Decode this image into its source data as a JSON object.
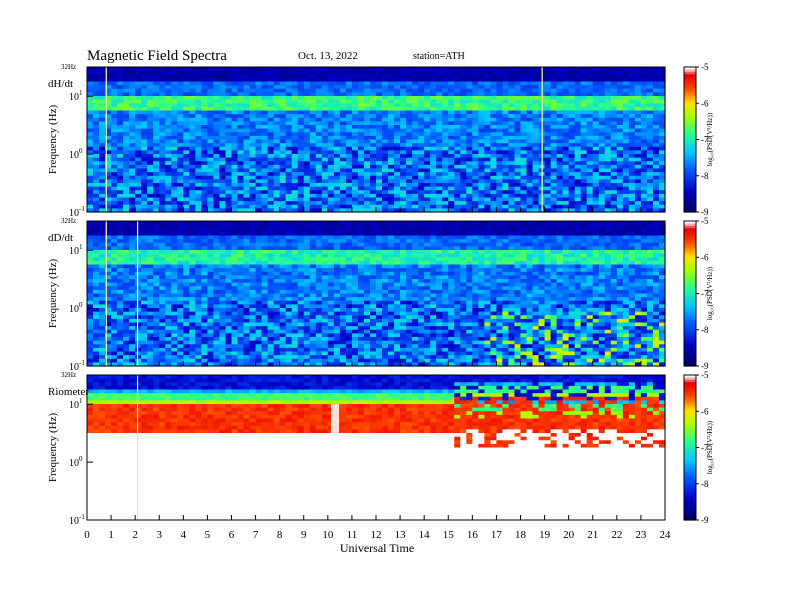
{
  "header": {
    "title": "Magnetic  Field  Spectra",
    "date": "Oct. 13, 2022",
    "station": "station=ATH"
  },
  "chart_data": [
    {
      "type": "heatmap",
      "panel_label": "dH/dt",
      "ylabel": "Frequency  (Hz)",
      "top_label": "32Hz",
      "y_ticks": [
        {
          "power": "1",
          "value": 10
        },
        {
          "power": "0",
          "value": 1
        },
        {
          "power": "-1",
          "value": 0.1
        }
      ],
      "ylim": [
        0.1,
        32
      ],
      "xlim": [
        0,
        24
      ],
      "scale": "log",
      "colorbar": {
        "label": "log₁₀(PSD(V²/Hz))",
        "ticks": [
          "-5",
          "-6",
          "-7",
          "-8",
          "-9"
        ],
        "range": [
          -9,
          -5
        ]
      },
      "features": {
        "band_low": -7.6,
        "band_high": -6.5,
        "spike_hours": [
          0.8,
          18.9
        ],
        "gap_hours": []
      }
    },
    {
      "type": "heatmap",
      "panel_label": "dD/dt",
      "ylabel": "Frequency  (Hz)",
      "top_label": "32Hz",
      "y_ticks": [
        {
          "power": "1",
          "value": 10
        },
        {
          "power": "0",
          "value": 1
        },
        {
          "power": "-1",
          "value": 0.1
        }
      ],
      "ylim": [
        0.1,
        32
      ],
      "xlim": [
        0,
        24
      ],
      "scale": "log",
      "colorbar": {
        "label": "log₁₀(PSD(V²/Hz))",
        "ticks": [
          "-5",
          "-6",
          "-7",
          "-8",
          "-9"
        ],
        "range": [
          -9,
          -5
        ]
      },
      "features": {
        "band_low": -7.6,
        "band_high": -6.6,
        "spike_hours": [
          0.8,
          2.1
        ],
        "gap_hours": []
      }
    },
    {
      "type": "heatmap",
      "panel_label": "Riometer",
      "ylabel": "Frequency  (Hz)",
      "top_label": "32Hz",
      "y_ticks": [
        {
          "power": "1",
          "value": 10
        },
        {
          "power": "0",
          "value": 1
        },
        {
          "power": "-1",
          "value": 0.1
        }
      ],
      "ylim": [
        0.1,
        32
      ],
      "xlim": [
        0,
        24
      ],
      "scale": "log",
      "colorbar": {
        "label": "log₁₀(PSD(V²/Hz))",
        "ticks": [
          "-5",
          "-6",
          "-7",
          "-8",
          "-9"
        ],
        "range": [
          -9,
          -5
        ]
      },
      "features": {
        "band_low": -9,
        "band_high": -5,
        "spike_hours": [
          2.1
        ],
        "gap_hours": [
          10.3
        ]
      }
    }
  ],
  "x_axis": {
    "label": "Universal  Time",
    "ticks": [
      "0",
      "1",
      "2",
      "3",
      "4",
      "5",
      "6",
      "7",
      "8",
      "9",
      "10",
      "11",
      "12",
      "13",
      "14",
      "15",
      "16",
      "17",
      "18",
      "19",
      "20",
      "21",
      "22",
      "23",
      "24"
    ]
  }
}
